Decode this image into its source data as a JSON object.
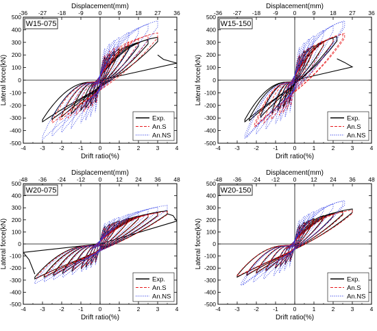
{
  "chart_data": [
    {
      "type": "line",
      "panel_label": "W15-075",
      "xlabel": "Drift ratio(%)",
      "ylabel": "Lateral force(kN)",
      "x2label": "Displacement(mm)",
      "xlim": [
        -4,
        4
      ],
      "ylim": [
        -500,
        500
      ],
      "xticks": [
        -4,
        -3,
        -2,
        -1,
        0,
        1,
        2,
        3,
        4
      ],
      "yticks": [
        -500,
        -400,
        -300,
        -200,
        -100,
        0,
        100,
        200,
        300,
        400,
        500
      ],
      "x2ticks": [
        -36,
        -27,
        -18,
        -9,
        0,
        9,
        18,
        27,
        36
      ],
      "legend_position": "bottom-right",
      "series": [
        {
          "name": "Exp.",
          "color": "#000000",
          "dash": "solid",
          "max_drift": 3.0,
          "neg_drift": -3.0,
          "peak_pos": 340,
          "peak_neg": -330,
          "tail": [
            [
              3.0,
              200
            ],
            [
              3.3,
              165
            ],
            [
              4.0,
              135
            ]
          ]
        },
        {
          "name": "An.S",
          "color": "#e8171a",
          "dash": "dashed",
          "max_drift": 3.0,
          "neg_drift": -2.5,
          "peak_pos": 375,
          "peak_neg": -340
        },
        {
          "name": "An.NS",
          "color": "#2b39e6",
          "dash": "dotted",
          "max_drift": 3.0,
          "neg_drift": -3.0,
          "peak_pos": 470,
          "peak_neg": -470
        }
      ]
    },
    {
      "type": "line",
      "panel_label": "W15-150",
      "xlabel": "Drift ratio(%)",
      "ylabel": "Lateral force(kN)",
      "x2label": "Displacement(mm)",
      "xlim": [
        -4,
        4
      ],
      "ylim": [
        -500,
        500
      ],
      "xticks": [
        -4,
        -3,
        -2,
        -1,
        0,
        1,
        2,
        3,
        4
      ],
      "yticks": [
        -500,
        -400,
        -300,
        -200,
        -100,
        0,
        100,
        200,
        300,
        400,
        500
      ],
      "x2ticks": [
        -36,
        -27,
        -18,
        -9,
        0,
        9,
        18,
        27,
        36
      ],
      "legend_position": "bottom-right",
      "series": [
        {
          "name": "Exp.",
          "color": "#000000",
          "dash": "solid",
          "max_drift": 2.2,
          "neg_drift": -2.6,
          "peak_pos": 345,
          "peak_neg": -330,
          "tail": [
            [
              2.2,
              170
            ],
            [
              2.6,
              140
            ],
            [
              3.0,
              105
            ]
          ]
        },
        {
          "name": "An.S",
          "color": "#e8171a",
          "dash": "dashed",
          "max_drift": 2.6,
          "neg_drift": -2.1,
          "peak_pos": 370,
          "peak_neg": -370
        },
        {
          "name": "An.NS",
          "color": "#2b39e6",
          "dash": "dotted",
          "max_drift": 2.6,
          "neg_drift": -2.6,
          "peak_pos": 470,
          "peak_neg": -460
        }
      ]
    },
    {
      "type": "line",
      "panel_label": "W20-075",
      "xlabel": "Drift ratio(%)",
      "ylabel": "Lateral force(kN)",
      "x2label": "Displacement(mm)",
      "xlim": [
        -4,
        4
      ],
      "ylim": [
        -500,
        500
      ],
      "xticks": [
        -4,
        -3,
        -2,
        -1,
        0,
        1,
        2,
        3,
        4
      ],
      "yticks": [
        -500,
        -400,
        -300,
        -200,
        -100,
        0,
        100,
        200,
        300,
        400,
        500
      ],
      "x2ticks": [
        -48,
        -36,
        -24,
        -12,
        0,
        12,
        24,
        36,
        48
      ],
      "legend_position": "bottom-right",
      "series": [
        {
          "name": "Exp.",
          "color": "#000000",
          "dash": "solid",
          "max_drift": 3.5,
          "neg_drift": -3.4,
          "peak_pos": 275,
          "peak_neg": -290,
          "tail": [
            [
              3.5,
              250
            ],
            [
              3.8,
              235
            ],
            [
              4.0,
              190
            ]
          ],
          "neg_tail": [
            [
              -3.4,
              -250
            ],
            [
              -3.7,
              -130
            ],
            [
              -4.0,
              -70
            ]
          ]
        },
        {
          "name": "An.S",
          "color": "#e8171a",
          "dash": "dashed",
          "max_drift": 3.5,
          "neg_drift": -3.3,
          "peak_pos": 270,
          "peak_neg": -285
        },
        {
          "name": "An.NS",
          "color": "#2b39e6",
          "dash": "dotted",
          "max_drift": 3.5,
          "neg_drift": -3.4,
          "peak_pos": 320,
          "peak_neg": -330
        }
      ]
    },
    {
      "type": "line",
      "panel_label": "W20-150",
      "xlabel": "Drift ratio(%)",
      "ylabel": "Lateral force(kN)",
      "x2label": "Displacement(mm)",
      "xlim": [
        -4,
        4
      ],
      "ylim": [
        -500,
        500
      ],
      "xticks": [
        -4,
        -3,
        -2,
        -1,
        0,
        1,
        2,
        3,
        4
      ],
      "yticks": [
        -500,
        -400,
        -300,
        -200,
        -100,
        0,
        100,
        200,
        300,
        400,
        500
      ],
      "x2ticks": [
        -48,
        -36,
        -24,
        -12,
        0,
        12,
        24,
        36,
        48
      ],
      "legend_position": "bottom-right",
      "series": [
        {
          "name": "Exp.",
          "color": "#000000",
          "dash": "solid",
          "max_drift": 3.0,
          "neg_drift": -3.0,
          "peak_pos": 290,
          "peak_neg": -275
        },
        {
          "name": "An.S",
          "color": "#e8171a",
          "dash": "dashed",
          "max_drift": 3.0,
          "neg_drift": -3.0,
          "peak_pos": 280,
          "peak_neg": -270
        },
        {
          "name": "An.NS",
          "color": "#2b39e6",
          "dash": "dotted",
          "max_drift": 2.6,
          "neg_drift": -2.8,
          "peak_pos": 360,
          "peak_neg": -345
        }
      ]
    }
  ]
}
